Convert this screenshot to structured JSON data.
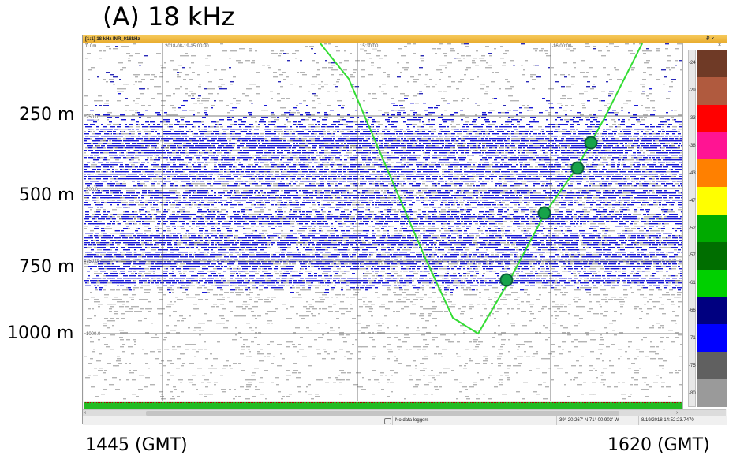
{
  "figure": {
    "title": "(A) 18 kHz",
    "depth_labels": [
      "250 m",
      "500 m",
      "750 m",
      "1000 m"
    ],
    "time_labels": {
      "left": "1445 (GMT)",
      "right": "1620 (GMT)"
    }
  },
  "window": {
    "title": "[1:1] 18 kHz INR_018kHz",
    "controls": "₽ ×"
  },
  "echogram": {
    "top_depth": "0.0m",
    "timestamps": [
      "2018-08-19 15:00:00",
      "15:30:00",
      "16:00:00"
    ],
    "depth_rulers": [
      "250.0",
      "500.0",
      "750.0",
      "1000.0"
    ]
  },
  "colour_scale": {
    "close": "×",
    "levels": [
      {
        "label": "-24",
        "color": "#6f3a26"
      },
      {
        "label": "-29",
        "color": "#b05a3e"
      },
      {
        "label": "-33",
        "color": "#ff0000"
      },
      {
        "label": "-38",
        "color": "#ff1493"
      },
      {
        "label": "-43",
        "color": "#ff8000"
      },
      {
        "label": "-47",
        "color": "#ffff00"
      },
      {
        "label": "-52",
        "color": "#00aa00"
      },
      {
        "label": "-57",
        "color": "#006e00"
      },
      {
        "label": "-61",
        "color": "#00d000"
      },
      {
        "label": "-66",
        "color": "#000080"
      },
      {
        "label": "-71",
        "color": "#0000ff"
      },
      {
        "label": "-75",
        "color": "#606060"
      },
      {
        "label": "-80",
        "color": "#9a9a9a"
      }
    ]
  },
  "status": {
    "loggers": "No data loggers",
    "position": "39° 20.267' N 71° 00.903' W",
    "datetime": "8/19/2018 14:52:23.7470"
  }
}
